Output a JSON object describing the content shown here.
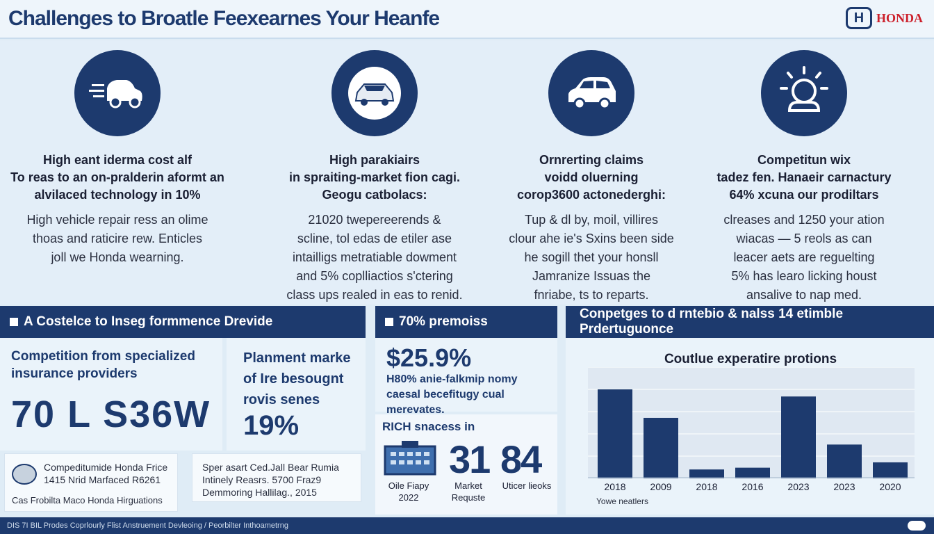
{
  "header": {
    "title": "Challenges to Broatle Feexearnes Your Heanfe",
    "brand_mark": "H",
    "brand_name": "HONDA"
  },
  "columns": [
    {
      "icon": "speeding-car-icon",
      "heading": [
        "High eant iderma cost alf",
        "To reas to an on-pralderin aformt an",
        "alvilaced technology in 10%"
      ],
      "body": [
        "High vehicle repair ress an olime",
        "thoas and raticire rew. Enticles",
        "joll we Honda wearning."
      ]
    },
    {
      "icon": "sedan-icon",
      "heading": [
        "High parakiairs",
        "in spraiting-market fion cagi.",
        "Geogu catbolacs:"
      ],
      "body": [
        "21020 twepereerends &",
        "scline, tol edas de etiler ase",
        "intailligs metratiable dowment",
        "and 5% coplliactios s'ctering",
        "class ups realed in eas to renid."
      ]
    },
    {
      "icon": "hatchback-icon",
      "heading": [
        "Ornrerting claims",
        "voidd oluerning",
        "corop3600 actonederghi:"
      ],
      "body": [
        "Tup & dl by, moil, villires",
        "clour ahe ie's Sxins been side",
        "he sogill thet your honsll",
        "Jamranize Issuas the",
        "fnriabe, ts to reparts."
      ]
    },
    {
      "icon": "lightbulb-icon",
      "heading": [
        "Competitun wix",
        "tadez fen. Hanaeir carnactury",
        "64% xcuna our prodiltars"
      ],
      "body": [
        "clreases and 1250 your ation",
        "wiacas — 5 reols as can",
        "leacer aets are reguelting",
        "5% has learo licking houst",
        "ansalive to nap med."
      ]
    }
  ],
  "section1": {
    "title": "A Costelce to Inseg formmence Drevide",
    "left_heading": "Competition from specialized insurance providers",
    "big_number": "70 L S36W",
    "right_heading": [
      "Planment marke",
      "of Ire besougnt",
      "rovis senes"
    ],
    "right_pct": "19%",
    "card1": [
      "Compeditumide Honda Frice",
      "1415 Nrid Marfaced R6261",
      "Cas Frobilta Maco Honda Hirguations"
    ],
    "card2": [
      "Sper asart Ced.Jall Bear Rumia",
      "Intinely Reasrs. 5700 Fraz9",
      "Demmoring Hallilag., 2015"
    ]
  },
  "section2": {
    "title": "70% premoiss",
    "pct": "$25.9%",
    "text": "H80% anie-falkmip nomy caesal becefitugy cual merevates.",
    "sub_heading": "RICH snacess in",
    "num_a": "31",
    "num_b": "84",
    "label_a": [
      "Oile Fiapy",
      "2022"
    ],
    "label_b": [
      "Market",
      "Requste"
    ],
    "label_c": "Uticer lieoks"
  },
  "section3": {
    "title": "Conpetges to d rntebio & nalss 14 etimble Prdertuguonce"
  },
  "chart_data": {
    "type": "bar",
    "title": "Coutlue experatire protions",
    "categories": [
      "2018",
      "2009",
      "2018",
      "2016",
      "2023",
      "2023",
      "2020"
    ],
    "values": [
      100,
      68,
      10,
      12,
      92,
      38,
      18
    ],
    "ylim": [
      0,
      125
    ],
    "xlabel": "Yowe neatlers",
    "grid": true,
    "color": "#1d3a6e"
  },
  "footer": {
    "text": "DIS 7I BIL Prodes Coprlourly Flist Anstruement Devleoing / Peorbilter Inthoametrng"
  }
}
